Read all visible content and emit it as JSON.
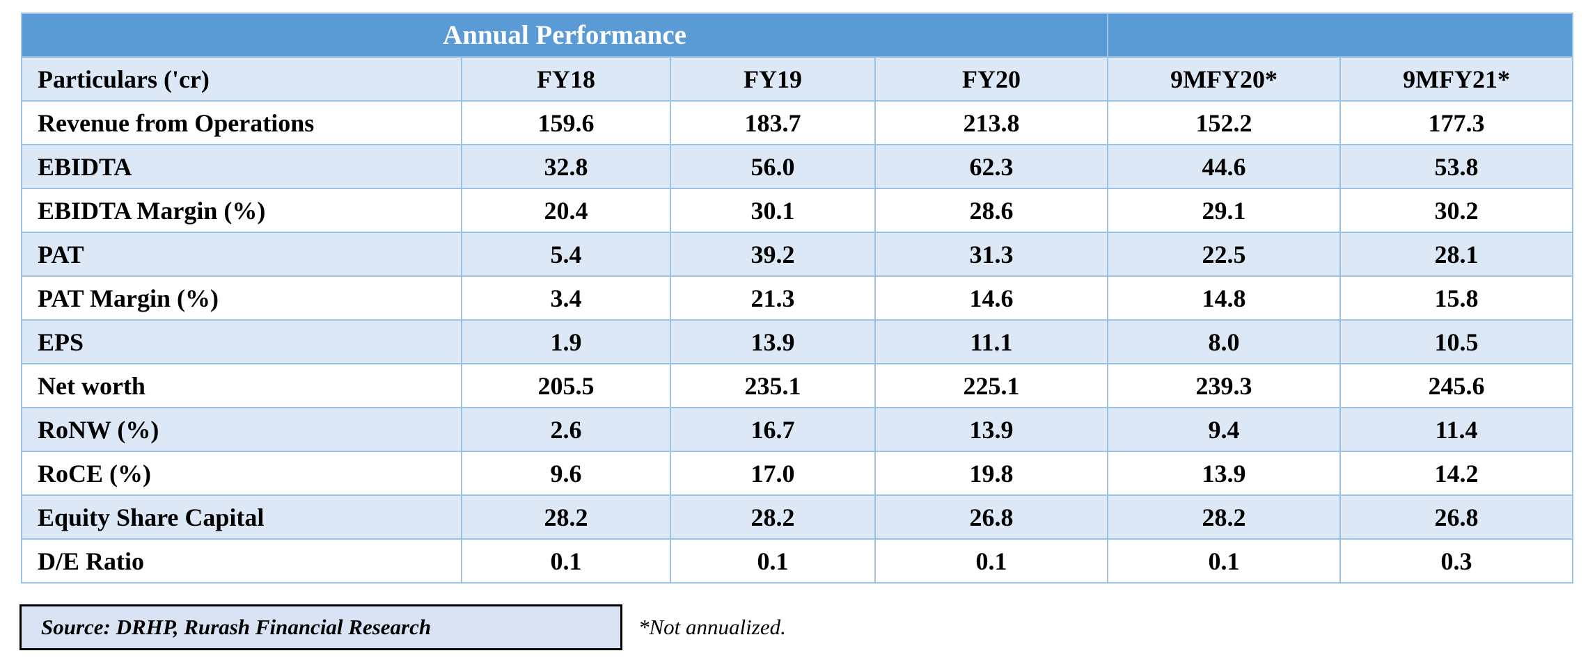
{
  "title": "Annual Performance",
  "columns": [
    "Particulars ('cr)",
    "FY18",
    "FY19",
    "FY20",
    "9MFY20*",
    "9MFY21*"
  ],
  "rows": [
    {
      "label": "Revenue from Operations",
      "values": [
        "159.6",
        "183.7",
        "213.8",
        "152.2",
        "177.3"
      ]
    },
    {
      "label": "EBIDTA",
      "values": [
        "32.8",
        "56.0",
        "62.3",
        "44.6",
        "53.8"
      ]
    },
    {
      "label": "EBIDTA Margin (%)",
      "values": [
        "20.4",
        "30.1",
        "28.6",
        "29.1",
        "30.2"
      ]
    },
    {
      "label": "PAT",
      "values": [
        "5.4",
        "39.2",
        "31.3",
        "22.5",
        "28.1"
      ]
    },
    {
      "label": "PAT Margin (%)",
      "values": [
        "3.4",
        "21.3",
        "14.6",
        "14.8",
        "15.8"
      ]
    },
    {
      "label": "EPS",
      "values": [
        "1.9",
        "13.9",
        "11.1",
        "8.0",
        "10.5"
      ]
    },
    {
      "label": "Net worth",
      "values": [
        "205.5",
        "235.1",
        "225.1",
        "239.3",
        "245.6"
      ]
    },
    {
      "label": "RoNW (%)",
      "values": [
        "2.6",
        "16.7",
        "13.9",
        "9.4",
        "11.4"
      ]
    },
    {
      "label": "RoCE (%)",
      "values": [
        "9.6",
        "17.0",
        "19.8",
        "13.9",
        "14.2"
      ]
    },
    {
      "label": "Equity Share Capital",
      "values": [
        "28.2",
        "28.2",
        "26.8",
        "28.2",
        "26.8"
      ]
    },
    {
      "label": "D/E Ratio",
      "values": [
        "0.1",
        "0.1",
        "0.1",
        "0.1",
        "0.3"
      ]
    }
  ],
  "source": "Source: DRHP, Rurash Financial Research",
  "footnote": "*Not annualized.",
  "colors": {
    "title_bg": "#5b9bd5",
    "shade_bg": "#dce8f6",
    "border": "#9cc3e6",
    "source_bg": "#dae3f3"
  }
}
